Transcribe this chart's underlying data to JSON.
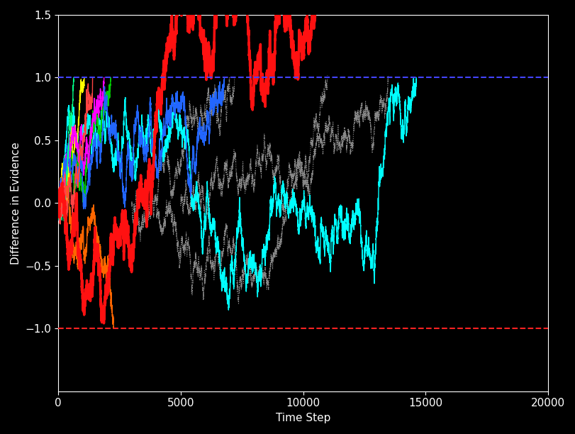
{
  "background_color": "#000000",
  "title": "",
  "xlabel": "Time Step",
  "ylabel": "Difference in Evidence",
  "xlim": [
    0,
    20000
  ],
  "ylim": [
    -1.5,
    1.5
  ],
  "yticks": [
    -1.0,
    -0.5,
    0.0,
    0.5,
    1.0,
    1.5
  ],
  "xticks": [
    0,
    5000,
    10000,
    15000,
    20000
  ],
  "upper_bound": 1.0,
  "lower_bound": -1.0,
  "upper_bound_color": "#4444ff",
  "lower_bound_color": "#ff2222",
  "drift": 5e-05,
  "noise": 0.015,
  "num_traces_colored": 8,
  "num_traces_black": 3,
  "seed": 42,
  "steps_total": 20000,
  "trace_linewidth": 1.0,
  "bold_linewidth": 2.5,
  "colors": [
    "#00ffff",
    "#00cc00",
    "#ffff00",
    "#ff00ff",
    "#2266ff",
    "#ff6600",
    "#00ff88",
    "#ff4444"
  ],
  "font_size": 11,
  "tick_color": "#ffffff",
  "label_color": "#ffffff",
  "axes_color": "#ffffff"
}
